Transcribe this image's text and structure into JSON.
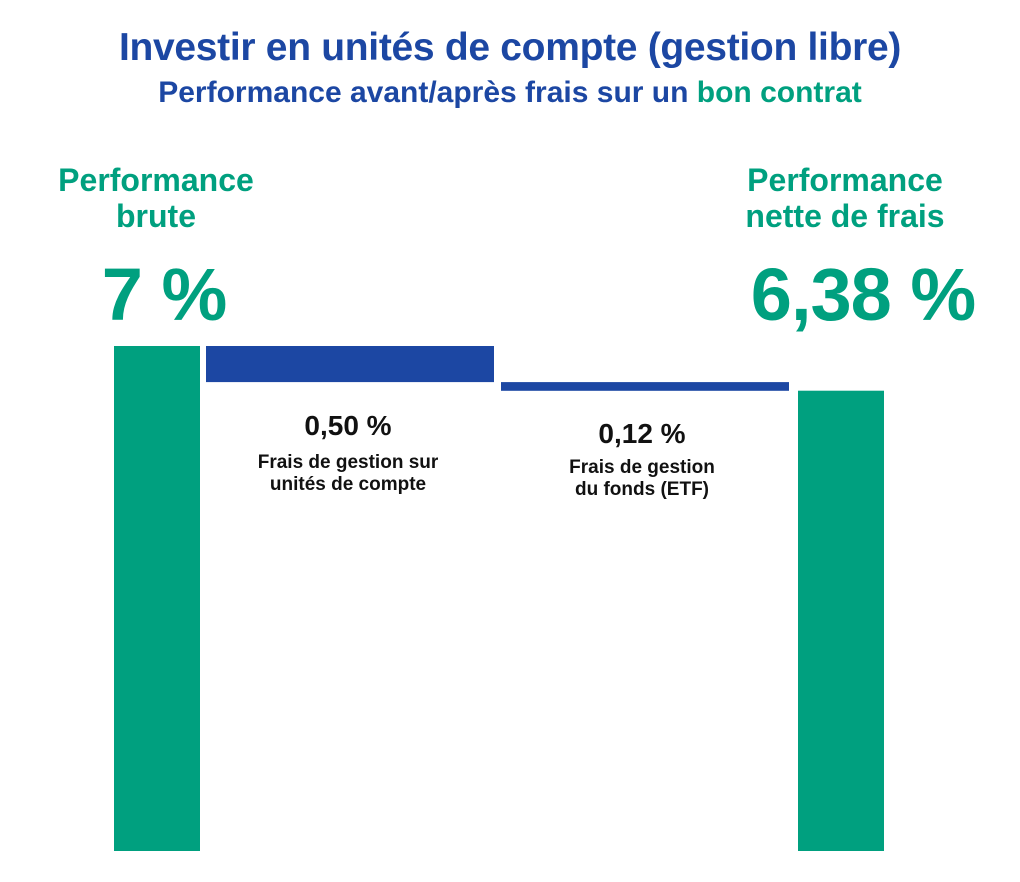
{
  "header": {
    "title": "Investir en unités de compte (gestion libre)",
    "subtitle_main": "Performance avant/après frais sur un ",
    "subtitle_accent": "bon contrat"
  },
  "colors": {
    "green": "#00a07f",
    "blue": "#1c47a3",
    "text": "#111111"
  },
  "chart_data": {
    "type": "waterfall",
    "title": "Investir en unités de compte (gestion libre)",
    "subtitle": "Performance avant/après frais sur un bon contrat",
    "unit": "%",
    "ylim": [
      0,
      7
    ],
    "steps": [
      {
        "kind": "total",
        "label_line1": "Performance",
        "label_line2": "brute",
        "value": 7,
        "display": "7 %"
      },
      {
        "kind": "decrease",
        "value": 0.5,
        "display": "0,50 %",
        "desc_line1": "Frais de gestion sur",
        "desc_line2": "unités de compte"
      },
      {
        "kind": "decrease",
        "value": 0.12,
        "display": "0,12 %",
        "desc_line1": "Frais de gestion",
        "desc_line2": "du fonds (ETF)"
      },
      {
        "kind": "total",
        "label_line1": "Performance",
        "label_line2": "nette de frais",
        "value": 6.38,
        "display": "6,38 %"
      }
    ]
  }
}
